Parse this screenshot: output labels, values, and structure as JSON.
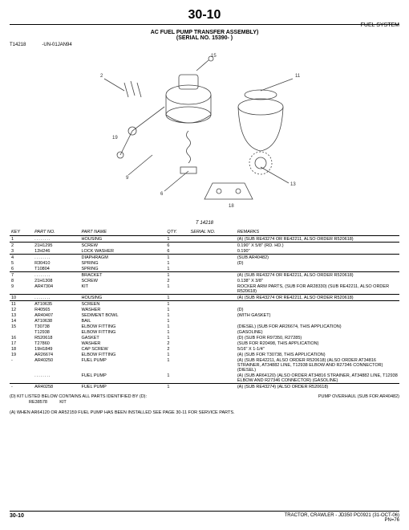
{
  "page_number": "30-10",
  "section_header": "FUEL SYSTEM",
  "title_line1": "AC FUEL PUMP TRANSFER ASSEMBLY)",
  "title_line2": "(SERIAL NO. 15390-      )",
  "diagram_ref": "T14218",
  "diagram_date": "-UN-01JAN94",
  "diagram_caption": "T 14218",
  "columns": {
    "key": "KEY",
    "partno": "PART NO.",
    "partname": "PART NAME",
    "qty": "QTY.",
    "serial": "SERIAL NO.",
    "remarks": "REMARKS"
  },
  "rows": [
    {
      "key": "1",
      "partno": "........",
      "name": "HOUSING",
      "qty": "1",
      "serial": "",
      "remarks": "(A) (SUB RE43274 OR RE42211, ALSO ORDER R520618)",
      "sep_before": false
    },
    {
      "key": "2",
      "partno": "21H1295",
      "name": "SCREW",
      "qty": "6",
      "serial": "",
      "remarks": "0.190\" X 5/8\" (RD. HD.)",
      "sep_before": true
    },
    {
      "key": "3",
      "partno": "12H246",
      "name": "LOCK WASHER",
      "qty": "6",
      "serial": "",
      "remarks": "0.190\"",
      "sep_before": false
    },
    {
      "key": "4",
      "partno": "........",
      "name": "DIAPHRAGM",
      "qty": "1",
      "serial": "",
      "remarks": "(SUB AR40482)",
      "sep_before": true
    },
    {
      "key": "5",
      "partno": "R30410",
      "name": "SPRING",
      "qty": "1",
      "serial": "",
      "remarks": "(D)",
      "sep_before": false
    },
    {
      "key": "6",
      "partno": "T10804",
      "name": "SPRING",
      "qty": "1",
      "serial": "",
      "remarks": "",
      "sep_before": false
    },
    {
      "key": "7",
      "partno": "........",
      "name": "BRACKET",
      "qty": "1",
      "serial": "",
      "remarks": "(A) (SUB RE43274 OR RE42211, ALSO ORDER R520618)",
      "sep_before": true
    },
    {
      "key": "8",
      "partno": "21H1308",
      "name": "SCREW",
      "qty": "2",
      "serial": "",
      "remarks": "0.138\" X 3/8\"",
      "sep_before": false
    },
    {
      "key": "9",
      "partno": "AR47304",
      "name": "KIT",
      "qty": "1",
      "serial": "",
      "remarks": "ROCKER ARM PARTS, (SUB FOR AR28330) (SUB RE42211, ALSO ORDER R520618)",
      "sep_before": false
    },
    {
      "key": "10",
      "partno": "........",
      "name": "HOUSING",
      "qty": "1",
      "serial": "",
      "remarks": "(A) (SUB RE43274 OR RE42211, ALSO ORDER R520618)",
      "sep_before": true
    },
    {
      "key": "11",
      "partno": "AT10635",
      "name": "SCREEN",
      "qty": "1",
      "serial": "",
      "remarks": "",
      "sep_before": true
    },
    {
      "key": "12",
      "partno": "R40565",
      "name": "WASHER",
      "qty": "1",
      "serial": "",
      "remarks": "(D)",
      "sep_before": false
    },
    {
      "key": "13",
      "partno": "AR40407",
      "name": "SEDIMENT BOWL",
      "qty": "1",
      "serial": "",
      "remarks": "(WITH GASKET)",
      "sep_before": false
    },
    {
      "key": "14",
      "partno": "AT10638",
      "name": "BAIL",
      "qty": "1",
      "serial": "",
      "remarks": "",
      "sep_before": false
    },
    {
      "key": "15",
      "partno": "T30738",
      "name": "ELBOW FITTING",
      "qty": "1",
      "serial": "",
      "remarks": "(DIESEL) (SUB FOR AR26674, THIS APPLICATION)",
      "sep_before": false
    },
    {
      "key": "",
      "partno": "T12938",
      "name": "ELBOW FITTING",
      "qty": "1",
      "serial": "",
      "remarks": "(GASOLINE)",
      "sep_before": false
    },
    {
      "key": "16",
      "partno": "R520618",
      "name": "GASKET",
      "qty": "1",
      "serial": "",
      "remarks": "(D) (SUB FOR R97350, R27285)",
      "sep_before": false
    },
    {
      "key": "17",
      "partno": "T27860",
      "name": "WASHER",
      "qty": "2",
      "serial": "",
      "remarks": "(SUB FOR R20498, THIS APPLICATION)",
      "sep_before": false
    },
    {
      "key": "18",
      "partno": "19H1849",
      "name": "CAP SCREW",
      "qty": "2",
      "serial": "",
      "remarks": "5/16\" X 1-1/4\"",
      "sep_before": false
    },
    {
      "key": "19",
      "partno": "AR26674",
      "name": "ELBOW FITTING",
      "qty": "1",
      "serial": "",
      "remarks": "(A) (SUB FOR T30738, THIS APPLICATION)",
      "sep_before": false
    },
    {
      "key": "-",
      "partno": "AR40250",
      "name": "FUEL PUMP",
      "qty": "1",
      "serial": "",
      "remarks": "(A) (SUB RE42211, ALSO ORDER R520618) (ALSO ORDER AT34816 STRAINER, AT34882 LINE, T12938 ELBOW AND R27346 CONNECTOR) (DIESEL)",
      "sep_before": false
    },
    {
      "key": "",
      "partno": "........",
      "name": "FUEL PUMP",
      "qty": "1",
      "serial": "",
      "remarks": "(A) (SUB AR64120) (ALSO ORDER AT34816 STRAINER, AT34882 LINE, T12938 ELBOW AND R27346 CONNECTOR) (GASOLINE)",
      "sep_before": false
    },
    {
      "key": "-",
      "partno": "AR40258",
      "name": "FUEL PUMP",
      "qty": "1",
      "serial": "",
      "remarks": "(A) (SUB RE43274) (ALSO ORDER R520618)",
      "sep_before": true
    }
  ],
  "notes": {
    "line1_left": "(D) KIT LISTED BELOW CONTAINS ALL PARTS IDENTIFIED BY (D):",
    "line1_partno": "RE38578",
    "line1_name": "KIT",
    "line1_right": "PUMP OVERHAUL (SUB FOR AR40482)",
    "line2": "(A) WHEN AR64120 OR AR52159 FUEL PUMP HAS BEEN INSTALLED SEE PAGE 30-11 FOR SERVICE PARTS."
  },
  "footer": {
    "left": "30-10",
    "right1": "TRACTOR, CRAWLER - JD350    PC0921    (31-OCT-06)",
    "right2": "PN=76"
  }
}
